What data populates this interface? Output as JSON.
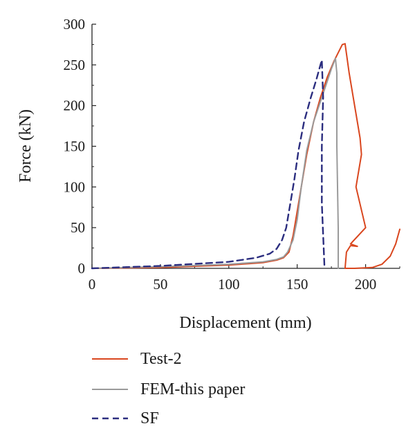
{
  "chart_data": {
    "type": "line",
    "xlabel": "Displacement (mm)",
    "ylabel": "Force (kN)",
    "xlim": [
      0,
      225
    ],
    "ylim": [
      0,
      300
    ],
    "x_ticks": [
      "0",
      "50",
      "100",
      "150",
      "200"
    ],
    "y_ticks": [
      "0",
      "50",
      "100",
      "150",
      "200",
      "250",
      "300"
    ],
    "grid": false,
    "legend_position": "bottom",
    "series": [
      {
        "name": "Test-2",
        "color": "#d9461e",
        "dash": "solid",
        "points": [
          [
            0,
            0
          ],
          [
            50,
            1
          ],
          [
            100,
            4
          ],
          [
            125,
            7
          ],
          [
            135,
            10
          ],
          [
            140,
            13
          ],
          [
            144,
            20
          ],
          [
            147,
            40
          ],
          [
            150,
            70
          ],
          [
            153,
            100
          ],
          [
            157,
            140
          ],
          [
            162,
            180
          ],
          [
            167,
            210
          ],
          [
            172,
            235
          ],
          [
            177,
            255
          ],
          [
            180,
            265
          ],
          [
            183,
            275
          ],
          [
            185,
            276
          ],
          [
            188,
            240
          ],
          [
            192,
            200
          ],
          [
            196,
            160
          ],
          [
            197,
            140
          ],
          [
            193,
            100
          ],
          [
            200,
            50
          ],
          [
            189,
            30
          ],
          [
            194,
            27
          ],
          [
            189,
            28
          ],
          [
            186,
            20
          ],
          [
            185,
            0
          ],
          [
            192,
            0
          ],
          [
            205,
            1
          ],
          [
            212,
            5
          ],
          [
            218,
            15
          ],
          [
            222,
            30
          ],
          [
            225,
            48
          ]
        ]
      },
      {
        "name": "FEM-this paper",
        "color": "#9a9a9a",
        "dash": "solid",
        "points": [
          [
            0,
            0
          ],
          [
            50,
            2
          ],
          [
            100,
            5
          ],
          [
            125,
            8
          ],
          [
            135,
            11
          ],
          [
            140,
            14
          ],
          [
            143,
            20
          ],
          [
            147,
            35
          ],
          [
            150,
            60
          ],
          [
            153,
            100
          ],
          [
            157,
            145
          ],
          [
            162,
            180
          ],
          [
            167,
            205
          ],
          [
            172,
            230
          ],
          [
            175,
            245
          ],
          [
            178,
            258
          ],
          [
            179,
            240
          ],
          [
            179,
            150
          ],
          [
            180,
            50
          ],
          [
            180,
            0
          ]
        ]
      },
      {
        "name": "SF",
        "color": "#2b2d7f",
        "dash": "dashed",
        "points": [
          [
            0,
            0
          ],
          [
            50,
            3
          ],
          [
            100,
            8
          ],
          [
            120,
            13
          ],
          [
            130,
            18
          ],
          [
            135,
            24
          ],
          [
            139,
            35
          ],
          [
            142,
            50
          ],
          [
            145,
            80
          ],
          [
            148,
            110
          ],
          [
            151,
            145
          ],
          [
            155,
            180
          ],
          [
            160,
            210
          ],
          [
            164,
            232
          ],
          [
            167,
            250
          ],
          [
            168,
            256
          ],
          [
            169,
            210
          ],
          [
            168,
            150
          ],
          [
            168,
            80
          ],
          [
            170,
            0
          ]
        ]
      }
    ]
  }
}
